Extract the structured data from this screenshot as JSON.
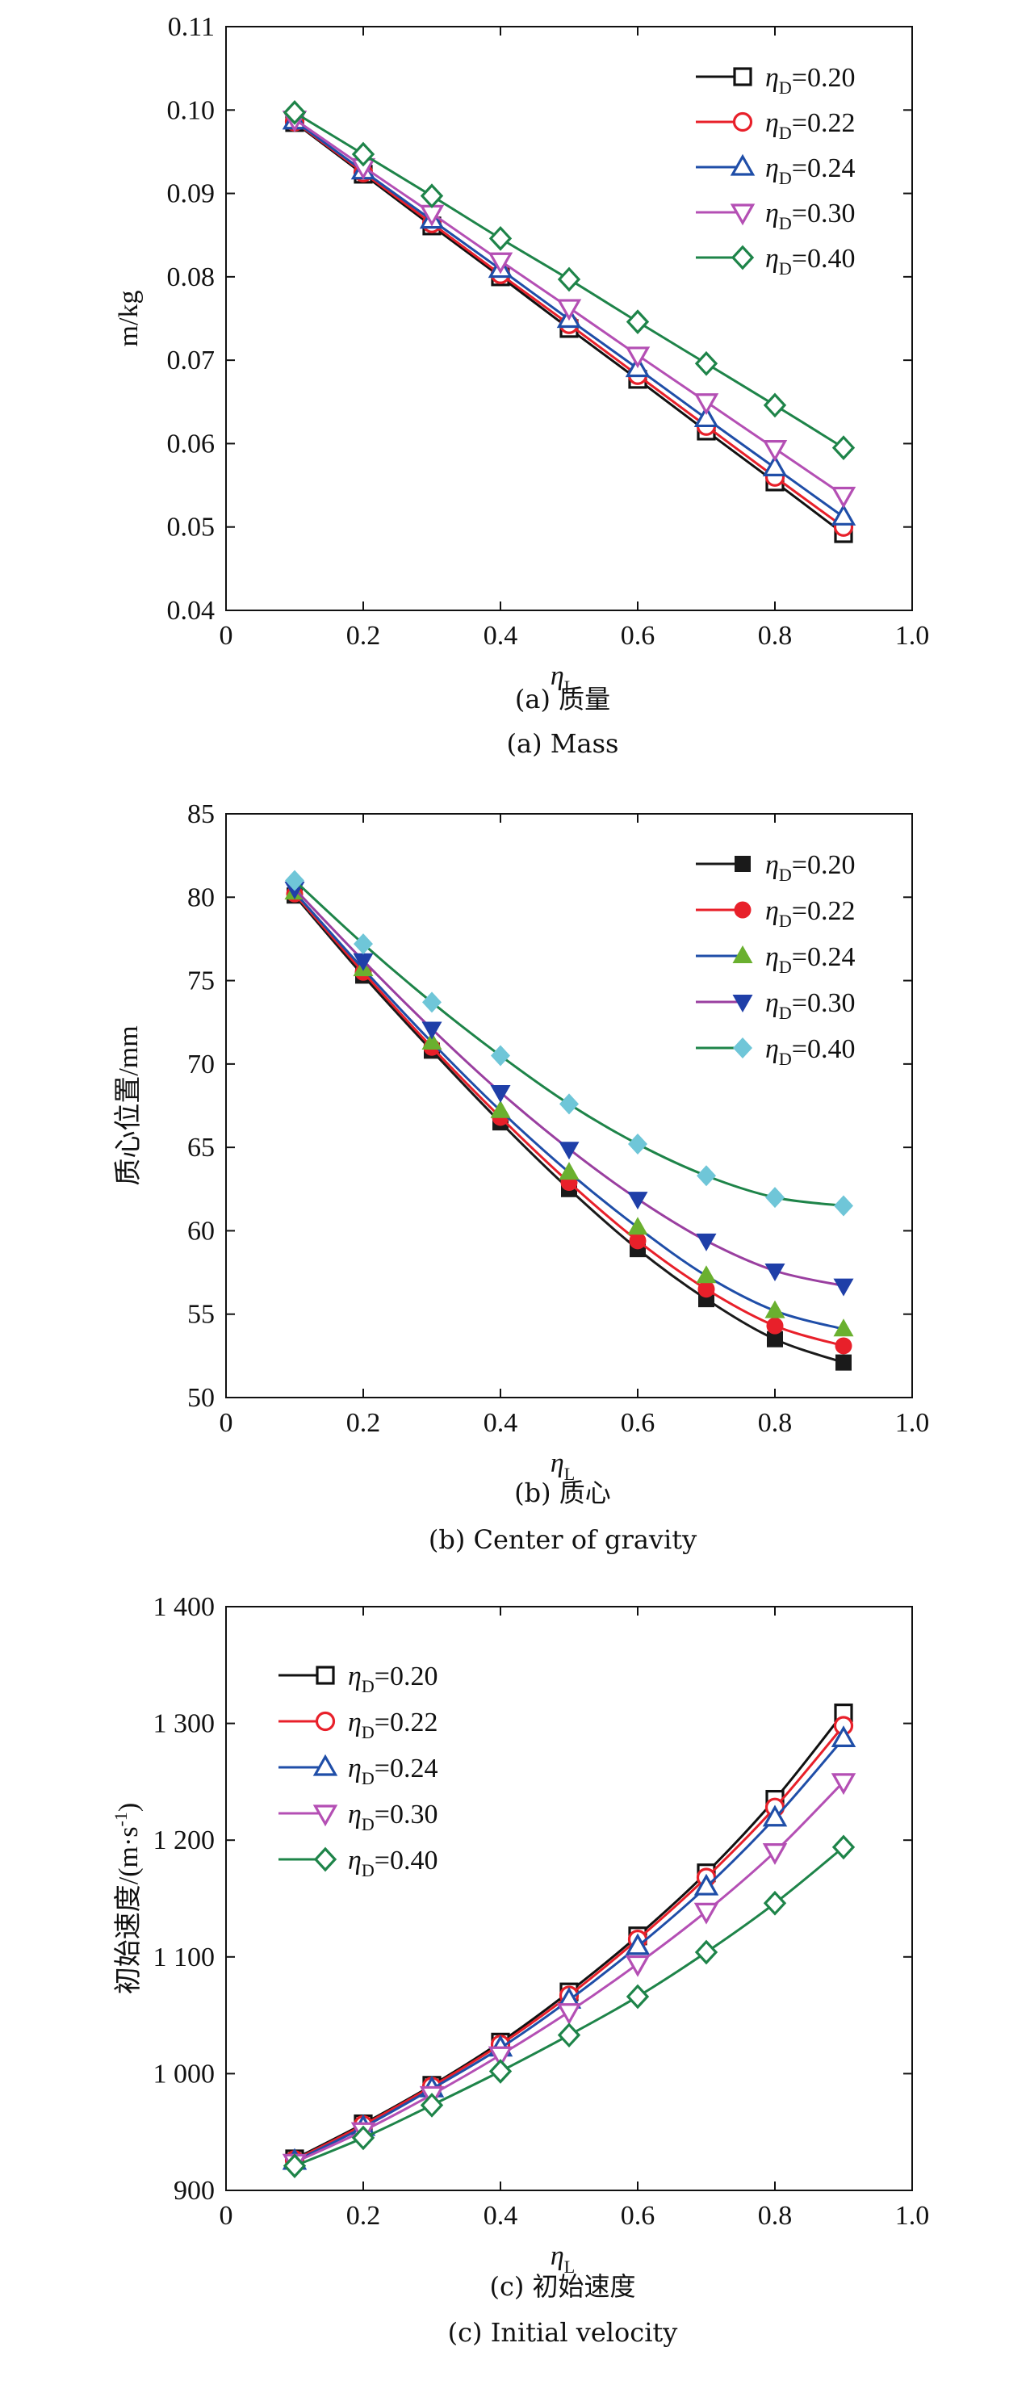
{
  "chart_data": [
    {
      "type": "line",
      "caption_zh": "(a) 质量",
      "caption_en": "(a) Mass",
      "xlabel": "η",
      "xlabel_sub": "L",
      "ylabel": "m/kg",
      "xlim": [
        0,
        1.0
      ],
      "ylim": [
        0.04,
        0.11
      ],
      "xticks": [
        "0",
        "0.2",
        "0.4",
        "0.6",
        "0.8",
        "1.0"
      ],
      "yticks": [
        "0.04",
        "0.05",
        "0.06",
        "0.07",
        "0.08",
        "0.09",
        "0.10",
        "0.11"
      ],
      "legend_position": "top-right",
      "x": [
        0.1,
        0.2,
        0.3,
        0.4,
        0.5,
        0.6,
        0.7,
        0.8,
        0.9
      ],
      "series": [
        {
          "name": "ηD=0.20",
          "label_sub": "D",
          "label_rest": "=0.20",
          "color": "#111111",
          "marker": "square-open",
          "values": [
            0.0985,
            0.0923,
            0.0861,
            0.08,
            0.0738,
            0.0677,
            0.0615,
            0.0554,
            0.0492
          ]
        },
        {
          "name": "ηD=0.22",
          "label_sub": "D",
          "label_rest": "=0.22",
          "color": "#e8202a",
          "marker": "circle-open",
          "values": [
            0.0986,
            0.0925,
            0.0864,
            0.0803,
            0.0743,
            0.0682,
            0.0621,
            0.056,
            0.05
          ]
        },
        {
          "name": "ηD=0.24",
          "label_sub": "D",
          "label_rest": "=0.24",
          "color": "#1f4ea8",
          "marker": "triangle-up-open",
          "values": [
            0.0987,
            0.0927,
            0.0868,
            0.0809,
            0.0749,
            0.069,
            0.063,
            0.0571,
            0.0512
          ]
        },
        {
          "name": "ηD=0.30",
          "label_sub": "D",
          "label_rest": "=0.30",
          "color": "#b44fb4",
          "marker": "triangle-down-open",
          "values": [
            0.0989,
            0.0932,
            0.0876,
            0.0819,
            0.0763,
            0.0706,
            0.065,
            0.0594,
            0.0538
          ]
        },
        {
          "name": "ηD=0.40",
          "label_sub": "D",
          "label_rest": "=0.40",
          "color": "#1e8449",
          "marker": "diamond-open",
          "values": [
            0.0997,
            0.0947,
            0.0897,
            0.0846,
            0.0797,
            0.0746,
            0.0696,
            0.0646,
            0.0595
          ]
        }
      ]
    },
    {
      "type": "line",
      "caption_zh": "(b) 质心",
      "caption_en": "(b) Center of gravity",
      "xlabel": "η",
      "xlabel_sub": "L",
      "ylabel": "质心位置/mm",
      "xlim": [
        0,
        1.0
      ],
      "ylim": [
        50,
        85
      ],
      "xticks": [
        "0",
        "0.2",
        "0.4",
        "0.6",
        "0.8",
        "1.0"
      ],
      "yticks": [
        "50",
        "55",
        "60",
        "65",
        "70",
        "75",
        "80",
        "85"
      ],
      "legend_position": "top-right",
      "x": [
        0.1,
        0.2,
        0.3,
        0.4,
        0.5,
        0.6,
        0.7,
        0.8,
        0.9
      ],
      "series": [
        {
          "name": "ηD=0.20",
          "label_sub": "D",
          "label_rest": "=0.20",
          "color": "#1a1a1a",
          "marker": "square-filled",
          "values": [
            80.1,
            75.3,
            70.8,
            66.5,
            62.5,
            58.9,
            55.9,
            53.5,
            52.1
          ]
        },
        {
          "name": "ηD=0.22",
          "label_sub": "D",
          "label_rest": "=0.22",
          "color": "#e8202a",
          "marker": "circle-filled",
          "values": [
            80.2,
            75.5,
            71.0,
            66.8,
            62.9,
            59.4,
            56.5,
            54.3,
            53.1
          ]
        },
        {
          "name": "ηD=0.24",
          "label_sub": "D",
          "label_rest": "=0.24",
          "color": "#6ab02f",
          "marker": "triangle-up-filled",
          "values": [
            80.3,
            75.7,
            71.3,
            67.2,
            63.5,
            60.2,
            57.3,
            55.2,
            54.1
          ]
        },
        {
          "name": "ηD=0.30",
          "label_sub": "D",
          "label_rest": "=0.30",
          "color": "#1f3fa8",
          "marker": "triangle-down-filled",
          "values": [
            80.5,
            76.2,
            72.1,
            68.3,
            64.9,
            61.9,
            59.4,
            57.6,
            56.7
          ]
        },
        {
          "name": "ηD=0.40",
          "label_sub": "D",
          "label_rest": "=0.40",
          "color": "#6fc6d8",
          "marker": "diamond-filled",
          "values": [
            81.0,
            77.2,
            73.7,
            70.5,
            67.6,
            65.2,
            63.3,
            62.0,
            61.5
          ]
        }
      ],
      "line_colors": [
        "#1a1a1a",
        "#e8202a",
        "#1f4ea8",
        "#9a3fa0",
        "#1e8449"
      ]
    },
    {
      "type": "line",
      "caption_zh": "(c) 初始速度",
      "caption_en": "(c) Initial velocity",
      "xlabel": "η",
      "xlabel_sub": "L",
      "ylabel": "初始速度/(m·s",
      "ylabel_sup": "-1",
      "ylabel_end": ")",
      "xlim": [
        0,
        1.0
      ],
      "ylim": [
        900,
        1400
      ],
      "xticks": [
        "0",
        "0.2",
        "0.4",
        "0.6",
        "0.8",
        "1.0"
      ],
      "yticks": [
        "900",
        "1 000",
        "1 100",
        "1 200",
        "1 300",
        "1 400"
      ],
      "legend_position": "top-left",
      "x": [
        0.1,
        0.2,
        0.3,
        0.4,
        0.5,
        0.6,
        0.7,
        0.8,
        0.9
      ],
      "series": [
        {
          "name": "ηD=0.20",
          "label_sub": "D",
          "label_rest": "=0.20",
          "color": "#111111",
          "marker": "square-open",
          "values": [
            927,
            957,
            990,
            1027,
            1070,
            1118,
            1172,
            1235,
            1309
          ]
        },
        {
          "name": "ηD=0.22",
          "label_sub": "D",
          "label_rest": "=0.22",
          "color": "#e8202a",
          "marker": "circle-open",
          "values": [
            926,
            956,
            989,
            1025,
            1067,
            1115,
            1168,
            1228,
            1298
          ]
        },
        {
          "name": "ηD=0.24",
          "label_sub": "D",
          "label_rest": "=0.24",
          "color": "#1f4ea8",
          "marker": "triangle-up-open",
          "values": [
            925,
            954,
            987,
            1022,
            1063,
            1109,
            1160,
            1219,
            1287
          ]
        },
        {
          "name": "ηD=0.30",
          "label_sub": "D",
          "label_rest": "=0.30",
          "color": "#b44fb4",
          "marker": "triangle-down-open",
          "values": [
            924,
            951,
            982,
            1016,
            1053,
            1094,
            1139,
            1190,
            1250
          ]
        },
        {
          "name": "ηD=0.40",
          "label_sub": "D",
          "label_rest": "=0.40",
          "color": "#1e8449",
          "marker": "diamond-open",
          "values": [
            921,
            945,
            973,
            1002,
            1033,
            1066,
            1104,
            1146,
            1194
          ]
        }
      ]
    }
  ]
}
